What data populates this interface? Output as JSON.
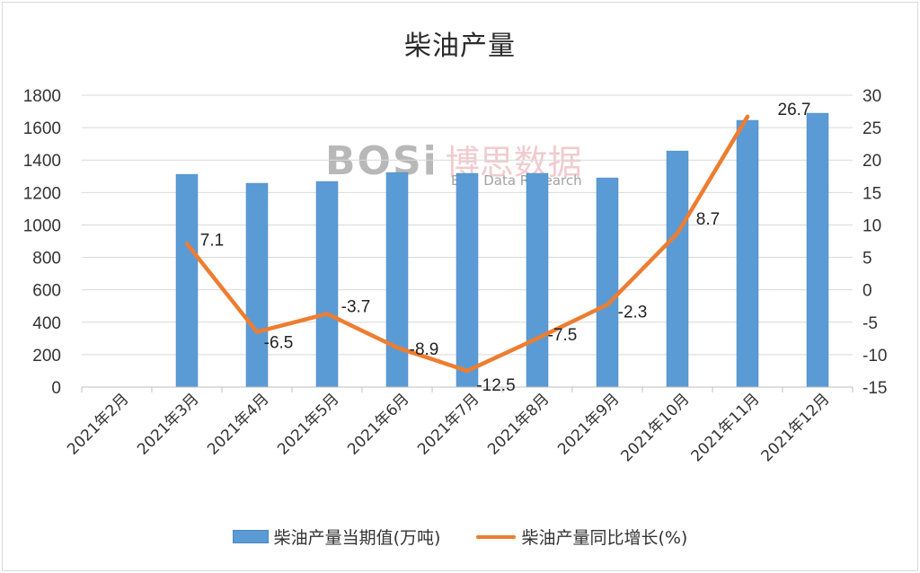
{
  "title": "柴油产量",
  "watermark": {
    "logo": "BOSi",
    "cn": "博思数据",
    "en": "Bosi Data Research"
  },
  "legend": {
    "bar_label": "柴油产量当期值(万吨)",
    "line_label": "柴油产量同比增长(%)"
  },
  "colors": {
    "bar": "#5b9bd5",
    "line": "#ed7d31",
    "grid": "#d9d9d9"
  },
  "chart_data": {
    "type": "bar+line",
    "title": "柴油产量",
    "categories": [
      "2021年2月",
      "2021年3月",
      "2021年4月",
      "2021年5月",
      "2021年6月",
      "2021年7月",
      "2021年8月",
      "2021年9月",
      "2021年10月",
      "2021年11月",
      "2021年12月"
    ],
    "series": [
      {
        "name": "柴油产量当期值(万吨)",
        "type": "bar",
        "axis": "left",
        "values": [
          null,
          1312,
          1257,
          1268,
          1323,
          1318,
          1318,
          1290,
          1456,
          1645,
          1689
        ]
      },
      {
        "name": "柴油产量同比增长(%)",
        "type": "line",
        "axis": "right",
        "values": [
          null,
          7.1,
          -6.5,
          -3.7,
          -8.9,
          -12.5,
          -7.5,
          -2.3,
          8.7,
          26.7,
          null
        ],
        "data_labels": [
          "",
          "7.1",
          "-6.5",
          "-3.7",
          "-8.9",
          "-12.5",
          "-7.5",
          "-2.3",
          "8.7",
          "26.7",
          ""
        ]
      }
    ],
    "y_left": {
      "ticks": [
        "0",
        "200",
        "400",
        "600",
        "800",
        "1000",
        "1200",
        "1400",
        "1600",
        "1800"
      ],
      "ylim": [
        0,
        1800
      ]
    },
    "y_right": {
      "ticks": [
        "-15",
        "-10",
        "-5",
        "0",
        "5",
        "10",
        "15",
        "20",
        "25",
        "30"
      ],
      "ylim": [
        -15,
        30
      ]
    },
    "grid": true,
    "legend_position": "bottom"
  }
}
